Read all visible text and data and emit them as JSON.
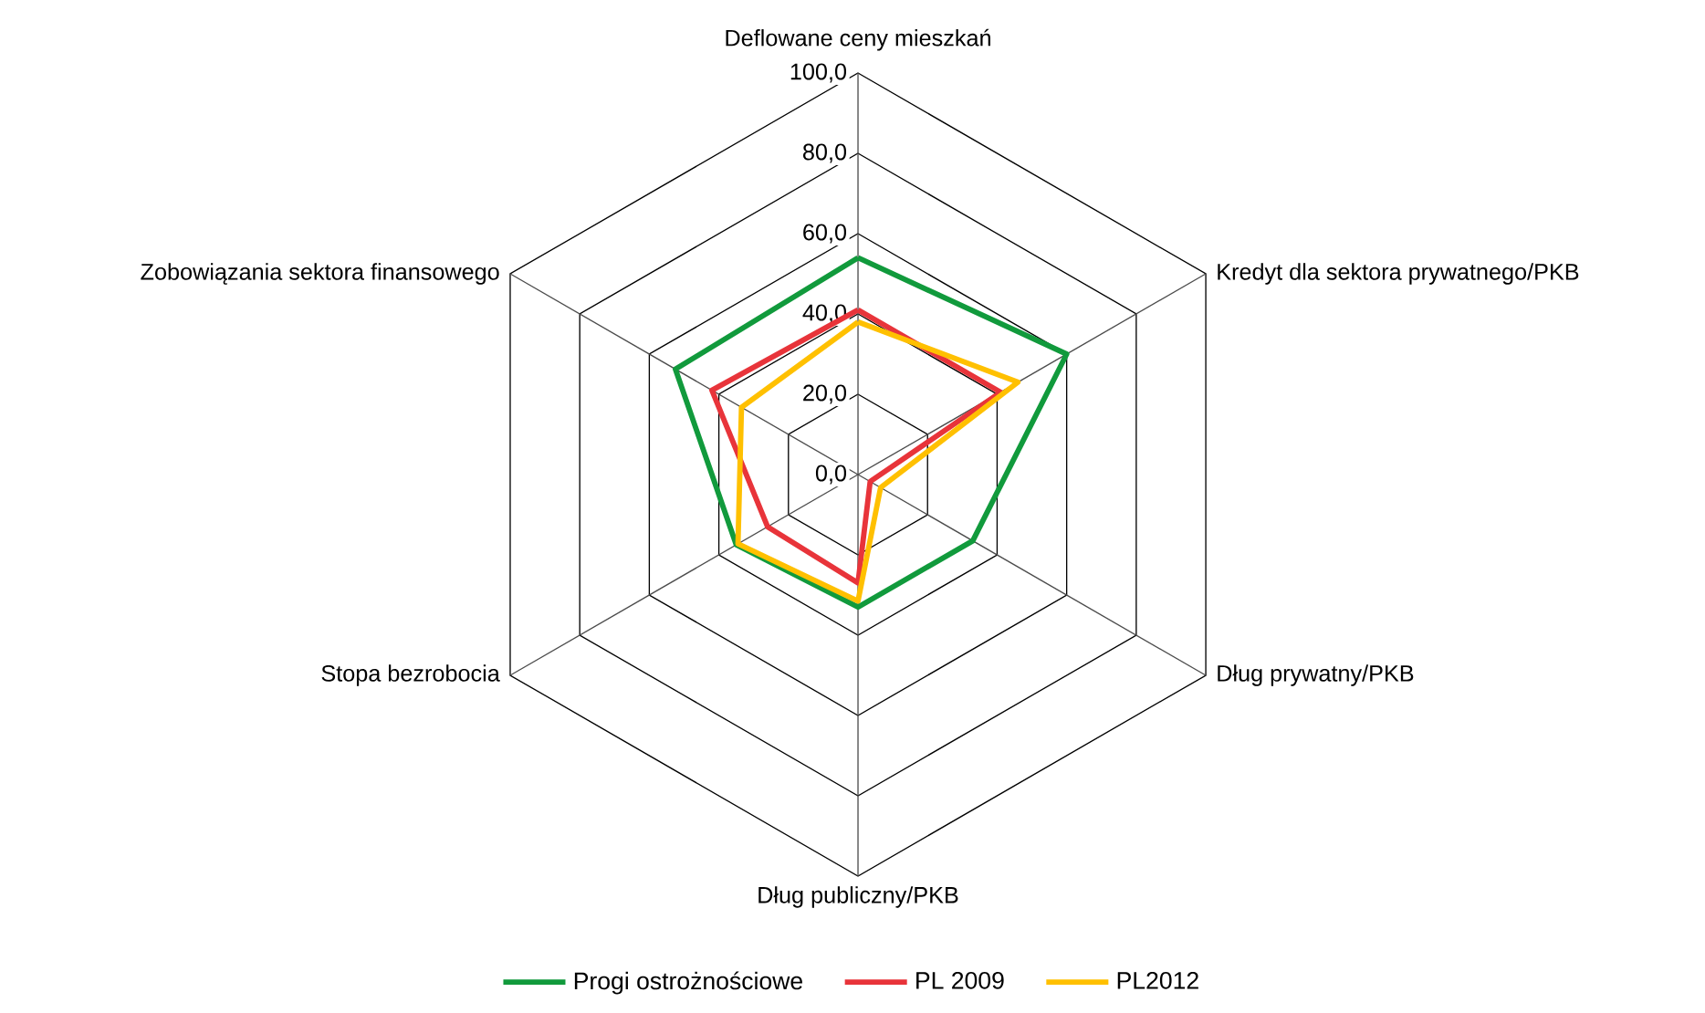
{
  "chart_data": {
    "type": "radar",
    "categories": [
      "Deflowane ceny mieszkań",
      "Kredyt dla sektora prywatnego/PKB",
      "Dług prywatny/PKB",
      "Dług publiczny/PKB",
      "Stopa bezrobocia",
      "Zobowiązania sektora finansowego"
    ],
    "series": [
      {
        "name": "Progi ostrożnościowe",
        "color": "#119a3c",
        "values": [
          54,
          60,
          33,
          33,
          35,
          52.5
        ]
      },
      {
        "name": "PL 2009",
        "color": "#e8343a",
        "values": [
          41,
          41,
          3.5,
          27,
          26,
          42
        ]
      },
      {
        "name": "PL2012",
        "color": "#ffc000",
        "values": [
          38,
          46,
          6.5,
          31.5,
          34.5,
          33.5
        ]
      }
    ],
    "ylim": [
      0,
      100
    ],
    "yticks": [
      {
        "value": 0,
        "label": "0,0"
      },
      {
        "value": 20,
        "label": "20,0"
      },
      {
        "value": 40,
        "label": "40,0"
      },
      {
        "value": 60,
        "label": "60,0"
      },
      {
        "value": 80,
        "label": "80,0"
      },
      {
        "value": 100,
        "label": "100,0"
      }
    ],
    "grid": true,
    "legend": "bottom"
  }
}
